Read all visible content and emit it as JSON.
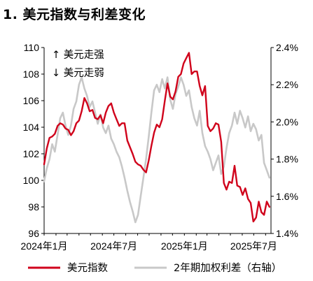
{
  "chart_data": {
    "type": "line",
    "title": "1. 美元指数与利差变化",
    "annotations": [
      "↑ 美元走强",
      "↓ 美元走弱"
    ],
    "x_tick_labels": [
      "2024年1月",
      "2024年7月",
      "2025年1月",
      "2025年7月"
    ],
    "x_range": [
      "2024-01",
      "2025-08"
    ],
    "y_left": {
      "range": [
        96,
        110
      ],
      "ticks": [
        "96",
        "98",
        "100",
        "102",
        "104",
        "106",
        "108",
        "110"
      ]
    },
    "y_right": {
      "range": [
        1.4,
        2.4
      ],
      "ticks": [
        "1.4%",
        "1.6%",
        "1.8%",
        "2.0%",
        "2.2%",
        "2.4%"
      ]
    },
    "legend_position": "bottom",
    "series": [
      {
        "name": "美元指数",
        "axis": "left",
        "color": "#d0021b",
        "x": [
          "2024-01-01",
          "2024-01-08",
          "2024-01-15",
          "2024-01-22",
          "2024-01-29",
          "2024-02-05",
          "2024-02-12",
          "2024-02-19",
          "2024-02-26",
          "2024-03-04",
          "2024-03-11",
          "2024-03-18",
          "2024-03-25",
          "2024-04-01",
          "2024-04-08",
          "2024-04-15",
          "2024-04-22",
          "2024-04-29",
          "2024-05-06",
          "2024-05-13",
          "2024-05-20",
          "2024-05-27",
          "2024-06-03",
          "2024-06-10",
          "2024-06-17",
          "2024-06-24",
          "2024-07-01",
          "2024-07-08",
          "2024-07-15",
          "2024-07-22",
          "2024-07-29",
          "2024-08-05",
          "2024-08-12",
          "2024-08-19",
          "2024-08-26",
          "2024-09-02",
          "2024-09-09",
          "2024-09-16",
          "2024-09-23",
          "2024-09-30",
          "2024-10-07",
          "2024-10-14",
          "2024-10-21",
          "2024-10-28",
          "2024-11-04",
          "2024-11-11",
          "2024-11-18",
          "2024-11-25",
          "2024-12-02",
          "2024-12-09",
          "2024-12-16",
          "2024-12-23",
          "2024-12-30",
          "2025-01-06",
          "2025-01-13",
          "2025-01-20",
          "2025-01-27",
          "2025-02-03",
          "2025-02-10",
          "2025-02-17",
          "2025-02-24",
          "2025-03-03",
          "2025-03-10",
          "2025-03-17",
          "2025-03-24",
          "2025-03-31",
          "2025-04-07",
          "2025-04-14",
          "2025-04-21",
          "2025-04-28",
          "2025-05-05",
          "2025-05-12",
          "2025-05-19",
          "2025-05-26",
          "2025-06-02",
          "2025-06-09",
          "2025-06-16",
          "2025-06-23",
          "2025-06-30",
          "2025-07-07",
          "2025-07-14",
          "2025-07-21",
          "2025-07-28",
          "2025-08-04",
          "2025-08-11"
        ],
        "values": [
          101.2,
          102.4,
          103.2,
          103.3,
          103.5,
          104.1,
          104.3,
          104.2,
          103.9,
          103.8,
          103.4,
          103.7,
          104.3,
          104.5,
          105.2,
          106.2,
          105.8,
          105.2,
          105.3,
          104.7,
          104.6,
          104.9,
          104.3,
          105.1,
          105.6,
          105.8,
          105.1,
          104.6,
          104.1,
          104.3,
          104.3,
          103.0,
          102.5,
          102.0,
          101.4,
          101.2,
          101.1,
          100.8,
          100.6,
          101.5,
          102.6,
          103.6,
          104.2,
          104.0,
          104.6,
          106.0,
          107.3,
          106.3,
          106.1,
          106.7,
          107.8,
          108.0,
          108.8,
          109.2,
          109.6,
          108.0,
          108.2,
          108.2,
          107.1,
          106.4,
          107.1,
          104.1,
          103.7,
          103.9,
          104.3,
          104.2,
          102.9,
          99.8,
          99.3,
          99.9,
          99.8,
          101.1,
          99.6,
          99.5,
          98.9,
          99.4,
          98.6,
          98.3,
          96.9,
          97.2,
          98.4,
          97.6,
          97.4,
          98.4,
          98.0
        ]
      },
      {
        "name": "2年期加权利差（右轴）",
        "axis": "right",
        "color": "#c8c8c8",
        "x": [
          "2024-01-01",
          "2024-01-08",
          "2024-01-15",
          "2024-01-22",
          "2024-01-29",
          "2024-02-05",
          "2024-02-12",
          "2024-02-19",
          "2024-02-26",
          "2024-03-04",
          "2024-03-11",
          "2024-03-18",
          "2024-03-25",
          "2024-04-01",
          "2024-04-08",
          "2024-04-15",
          "2024-04-22",
          "2024-04-29",
          "2024-05-06",
          "2024-05-13",
          "2024-05-20",
          "2024-05-27",
          "2024-06-03",
          "2024-06-10",
          "2024-06-17",
          "2024-06-24",
          "2024-07-01",
          "2024-07-08",
          "2024-07-15",
          "2024-07-22",
          "2024-07-29",
          "2024-08-05",
          "2024-08-12",
          "2024-08-19",
          "2024-08-26",
          "2024-09-02",
          "2024-09-09",
          "2024-09-16",
          "2024-09-23",
          "2024-09-30",
          "2024-10-07",
          "2024-10-14",
          "2024-10-21",
          "2024-10-28",
          "2024-11-04",
          "2024-11-11",
          "2024-11-18",
          "2024-11-25",
          "2024-12-02",
          "2024-12-09",
          "2024-12-16",
          "2024-12-23",
          "2024-12-30",
          "2025-01-06",
          "2025-01-13",
          "2025-01-20",
          "2025-01-27",
          "2025-02-03",
          "2025-02-10",
          "2025-02-17",
          "2025-02-24",
          "2025-03-03",
          "2025-03-10",
          "2025-03-17",
          "2025-03-24",
          "2025-03-31",
          "2025-04-07",
          "2025-04-14",
          "2025-04-21",
          "2025-04-28",
          "2025-05-05",
          "2025-05-12",
          "2025-05-19",
          "2025-05-26",
          "2025-06-02",
          "2025-06-09",
          "2025-06-16",
          "2025-06-23",
          "2025-06-30",
          "2025-07-07",
          "2025-07-14",
          "2025-07-21",
          "2025-07-28",
          "2025-08-04",
          "2025-08-11"
        ],
        "values": [
          1.68,
          1.75,
          1.8,
          1.88,
          1.84,
          1.93,
          2.02,
          2.05,
          1.98,
          1.93,
          1.98,
          2.07,
          2.11,
          2.2,
          2.24,
          2.18,
          2.14,
          2.08,
          2.11,
          2.05,
          1.99,
          2.04,
          1.97,
          1.94,
          1.98,
          1.91,
          1.88,
          1.84,
          1.81,
          1.76,
          1.7,
          1.63,
          1.57,
          1.52,
          1.46,
          1.5,
          1.6,
          1.7,
          1.8,
          1.92,
          2.05,
          2.17,
          2.2,
          2.16,
          2.23,
          2.18,
          2.24,
          2.12,
          2.07,
          2.15,
          2.19,
          2.24,
          2.2,
          2.14,
          2.17,
          2.08,
          2.02,
          1.98,
          2.06,
          1.94,
          1.87,
          1.84,
          1.8,
          1.74,
          1.78,
          1.82,
          1.72,
          1.76,
          1.86,
          1.94,
          1.98,
          2.05,
          1.99,
          2.06,
          2.02,
          1.97,
          2.03,
          1.95,
          1.99,
          1.96,
          1.9,
          1.93,
          1.78,
          1.74,
          1.7
        ]
      }
    ]
  }
}
